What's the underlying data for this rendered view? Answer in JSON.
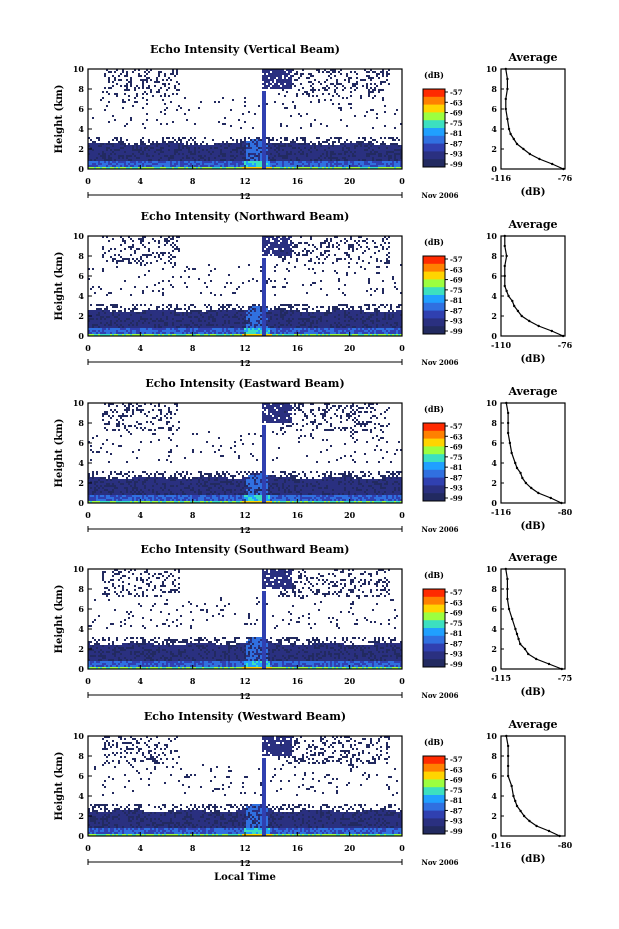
{
  "chart_data": [
    {
      "type": "heatmap",
      "title": "Echo Intensity (Vertical Beam)",
      "ylabel": "Height (km)",
      "xlabel": "",
      "xlim": [
        0,
        24
      ],
      "ylim": [
        0,
        10
      ],
      "x_ticks": [
        "0",
        "4",
        "8",
        "12",
        "16",
        "20",
        "0"
      ],
      "y_ticks": [
        "0",
        "2",
        "4",
        "6",
        "8",
        "10"
      ],
      "date_label": "12",
      "month_label": "Nov 2006",
      "colorbar_label": "(dB)",
      "colorbar_ticks": [
        "-57",
        "-63",
        "-69",
        "-75",
        "-81",
        "-87",
        "-93",
        "-99"
      ],
      "avg_title": "Average",
      "avg_xlabel": "(dB)",
      "avg_xticks": [
        "-116",
        "-76"
      ],
      "avg_xlim": [
        -116,
        -76
      ],
      "avg_profile": [
        [
          0.0,
          -77
        ],
        [
          0.5,
          -84
        ],
        [
          1.0,
          -92
        ],
        [
          1.5,
          -98
        ],
        [
          2.0,
          -102
        ],
        [
          2.5,
          -106
        ],
        [
          3.0,
          -108
        ],
        [
          3.5,
          -110
        ],
        [
          4.0,
          -111
        ],
        [
          5.0,
          -112
        ],
        [
          6.0,
          -113
        ],
        [
          7.0,
          -113
        ],
        [
          8.0,
          -112
        ],
        [
          9.0,
          -112
        ],
        [
          10.0,
          -113
        ]
      ]
    },
    {
      "type": "heatmap",
      "title": "Echo Intensity (Northward Beam)",
      "ylabel": "Height (km)",
      "xlabel": "",
      "xlim": [
        0,
        24
      ],
      "ylim": [
        0,
        10
      ],
      "x_ticks": [
        "0",
        "4",
        "8",
        "12",
        "16",
        "20",
        "0"
      ],
      "y_ticks": [
        "0",
        "2",
        "4",
        "6",
        "8",
        "10"
      ],
      "date_label": "12",
      "month_label": "Nov 2006",
      "colorbar_label": "(dB)",
      "colorbar_ticks": [
        "-57",
        "-63",
        "-69",
        "-75",
        "-81",
        "-87",
        "-93",
        "-99"
      ],
      "avg_title": "Average",
      "avg_xlabel": "(dB)",
      "avg_xticks": [
        "-110",
        "-76"
      ],
      "avg_xlim": [
        -110,
        -76
      ],
      "avg_profile": [
        [
          0.0,
          -77
        ],
        [
          0.5,
          -83
        ],
        [
          1.0,
          -90
        ],
        [
          1.5,
          -95
        ],
        [
          2.0,
          -99
        ],
        [
          2.5,
          -101
        ],
        [
          3.0,
          -103
        ],
        [
          3.5,
          -104
        ],
        [
          4.0,
          -106
        ],
        [
          4.5,
          -107
        ],
        [
          5.0,
          -108
        ],
        [
          6.0,
          -108
        ],
        [
          7.0,
          -108
        ],
        [
          8.0,
          -107
        ],
        [
          9.0,
          -108
        ],
        [
          10.0,
          -108
        ]
      ]
    },
    {
      "type": "heatmap",
      "title": "Echo Intensity (Eastward Beam)",
      "ylabel": "Height (km)",
      "xlabel": "",
      "xlim": [
        0,
        24
      ],
      "ylim": [
        0,
        10
      ],
      "x_ticks": [
        "0",
        "4",
        "8",
        "12",
        "16",
        "20",
        "0"
      ],
      "y_ticks": [
        "0",
        "2",
        "4",
        "6",
        "8",
        "10"
      ],
      "date_label": "12",
      "month_label": "Nov 2006",
      "colorbar_label": "(dB)",
      "colorbar_ticks": [
        "-57",
        "-63",
        "-69",
        "-75",
        "-81",
        "-87",
        "-93",
        "-99"
      ],
      "avg_title": "Average",
      "avg_xlabel": "(dB)",
      "avg_xticks": [
        "-116",
        "-80"
      ],
      "avg_xlim": [
        -116,
        -80
      ],
      "avg_profile": [
        [
          0.0,
          -82
        ],
        [
          0.5,
          -88
        ],
        [
          1.0,
          -95
        ],
        [
          1.5,
          -99
        ],
        [
          2.0,
          -102
        ],
        [
          2.5,
          -104
        ],
        [
          3.0,
          -105
        ],
        [
          3.5,
          -107
        ],
        [
          4.0,
          -108
        ],
        [
          5.0,
          -110
        ],
        [
          6.0,
          -111
        ],
        [
          7.0,
          -112
        ],
        [
          8.0,
          -112
        ],
        [
          9.0,
          -112
        ],
        [
          10.0,
          -113
        ]
      ]
    },
    {
      "type": "heatmap",
      "title": "Echo Intensity (Southward Beam)",
      "ylabel": "Height (km)",
      "xlabel": "",
      "xlim": [
        0,
        24
      ],
      "ylim": [
        0,
        10
      ],
      "x_ticks": [
        "0",
        "4",
        "8",
        "12",
        "16",
        "20",
        "0"
      ],
      "y_ticks": [
        "0",
        "2",
        "4",
        "6",
        "8",
        "10"
      ],
      "date_label": "12",
      "month_label": "Nov 2006",
      "colorbar_label": "(dB)",
      "colorbar_ticks": [
        "-57",
        "-63",
        "-69",
        "-75",
        "-81",
        "-87",
        "-93",
        "-99"
      ],
      "avg_title": "Average",
      "avg_xlabel": "(dB)",
      "avg_xticks": [
        "-115",
        "-75"
      ],
      "avg_xlim": [
        -115,
        -75
      ],
      "avg_profile": [
        [
          0.0,
          -77
        ],
        [
          0.5,
          -85
        ],
        [
          1.0,
          -93
        ],
        [
          1.5,
          -98
        ],
        [
          2.0,
          -100
        ],
        [
          2.5,
          -103
        ],
        [
          3.0,
          -104
        ],
        [
          3.5,
          -105
        ],
        [
          4.0,
          -106
        ],
        [
          5.0,
          -108
        ],
        [
          6.0,
          -110
        ],
        [
          7.0,
          -111
        ],
        [
          8.0,
          -111
        ],
        [
          9.0,
          -111
        ],
        [
          10.0,
          -112
        ]
      ]
    },
    {
      "type": "heatmap",
      "title": "Echo Intensity (Westward Beam)",
      "ylabel": "Height (km)",
      "xlabel": "Local Time",
      "xlim": [
        0,
        24
      ],
      "ylim": [
        0,
        10
      ],
      "x_ticks": [
        "0",
        "4",
        "8",
        "12",
        "16",
        "20",
        "0"
      ],
      "y_ticks": [
        "0",
        "2",
        "4",
        "6",
        "8",
        "10"
      ],
      "date_label": "12",
      "month_label": "Nov 2006",
      "colorbar_label": "(dB)",
      "colorbar_ticks": [
        "-57",
        "-63",
        "-69",
        "-75",
        "-81",
        "-87",
        "-93",
        "-99"
      ],
      "avg_title": "Average",
      "avg_xlabel": "(dB)",
      "avg_xticks": [
        "-116",
        "-80"
      ],
      "avg_xlim": [
        -116,
        -80
      ],
      "avg_profile": [
        [
          0.0,
          -83
        ],
        [
          0.5,
          -89
        ],
        [
          1.0,
          -96
        ],
        [
          1.5,
          -100
        ],
        [
          2.0,
          -103
        ],
        [
          2.5,
          -105
        ],
        [
          3.0,
          -107
        ],
        [
          3.5,
          -108
        ],
        [
          4.0,
          -109
        ],
        [
          5.0,
          -110
        ],
        [
          6.0,
          -112
        ],
        [
          7.0,
          -112
        ],
        [
          8.0,
          -112
        ],
        [
          9.0,
          -112
        ],
        [
          10.0,
          -113
        ]
      ]
    }
  ],
  "colors": {
    "scale": [
      "#ff2a00",
      "#ff8000",
      "#ffd400",
      "#9cff40",
      "#3ce0c0",
      "#20a0ff",
      "#3070e0",
      "#3040b0",
      "#2a3080",
      "#222a60"
    ],
    "background": "#ffffff"
  }
}
